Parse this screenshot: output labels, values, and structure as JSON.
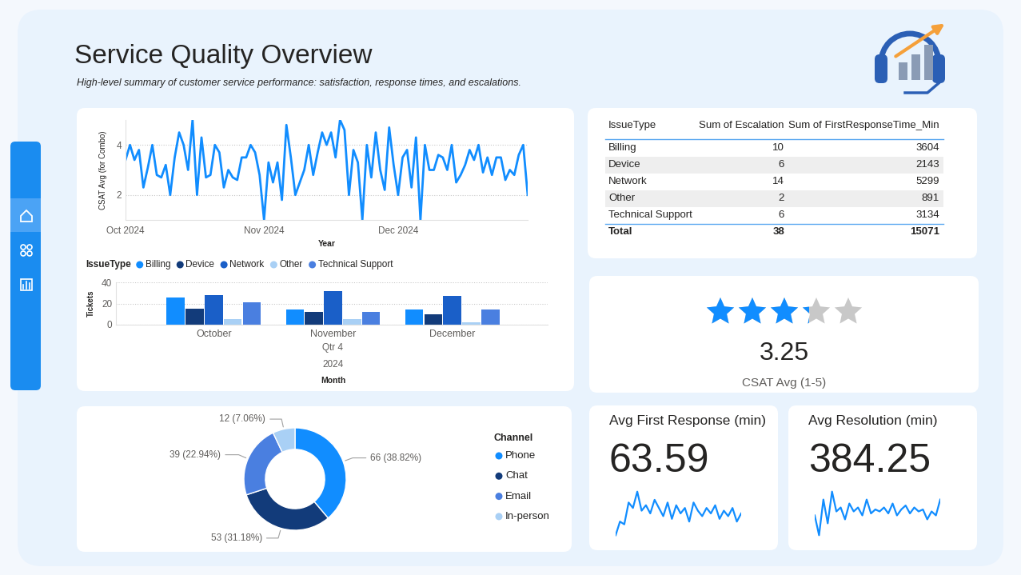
{
  "header": {
    "title": "Service Quality Overview",
    "subtitle": "High-level summary of customer service performance: satisfaction, response times, and escalations."
  },
  "chart_data": [
    {
      "type": "line",
      "x_label": "Year",
      "y_label": "CSAT Avg (for Combo)",
      "categories": [
        "Oct 2024",
        null,
        null,
        null,
        null,
        null,
        null,
        null,
        null,
        null,
        null,
        null,
        null,
        null,
        null,
        null,
        null,
        null,
        null,
        null,
        null,
        null,
        null,
        null,
        null,
        null,
        null,
        null,
        null,
        null,
        null,
        "Nov 2024",
        null,
        null,
        null,
        null,
        null,
        null,
        null,
        null,
        null,
        null,
        null,
        null,
        null,
        null,
        null,
        null,
        null,
        null,
        null,
        null,
        null,
        null,
        null,
        null,
        null,
        null,
        null,
        null,
        null,
        "Dec 2024",
        null,
        null,
        null,
        null,
        null,
        null,
        null,
        null,
        null,
        null,
        null,
        null,
        null,
        null,
        null,
        null,
        null,
        null,
        null,
        null,
        null,
        null,
        null,
        null,
        null,
        null,
        null,
        null,
        null
      ],
      "values": [
        3.4,
        4.0,
        3.4,
        3.8,
        2.3,
        3.1,
        4.0,
        2.8,
        2.7,
        3.2,
        2.0,
        3.5,
        4.5,
        4.0,
        3.0,
        5.0,
        2.0,
        4.3,
        2.7,
        2.8,
        4.0,
        3.7,
        2.3,
        3.0,
        2.7,
        2.6,
        3.5,
        3.5,
        4.0,
        3.7,
        2.8,
        1.0,
        3.3,
        2.5,
        3.3,
        1.8,
        4.8,
        3.5,
        2.0,
        2.5,
        3.0,
        4.0,
        2.8,
        3.7,
        4.5,
        4.0,
        4.5,
        3.5,
        5.0,
        4.6,
        2.0,
        3.8,
        3.3,
        1.0,
        4.0,
        2.7,
        4.5,
        3.0,
        2.2,
        4.7,
        3.2,
        2.0,
        3.5,
        3.8,
        2.3,
        4.3,
        1.0,
        4.0,
        3.0,
        3.0,
        3.6,
        3.5,
        3.0,
        4.0,
        2.5,
        2.8,
        3.2,
        3.8,
        3.4,
        4.0,
        2.9,
        3.5,
        2.8,
        3.5,
        3.5,
        2.6,
        3.0,
        2.8,
        3.6,
        4.0,
        2.0
      ],
      "color": "#118DFF",
      "ylim": [
        1,
        5
      ],
      "yticks": [
        2,
        4
      ],
      "grid": true
    },
    {
      "type": "bar",
      "x_label": "Month",
      "x_group_labels": [
        "Qtr 4",
        "2024"
      ],
      "y_label": "Tickets",
      "legend_title": "IssueType",
      "categories": [
        "October",
        "November",
        "December"
      ],
      "series": [
        {
          "name": "Billing",
          "color": "#118DFF",
          "values": [
            26,
            14,
            14
          ]
        },
        {
          "name": "Device",
          "color": "#123B7A",
          "values": [
            15,
            12,
            10
          ]
        },
        {
          "name": "Network",
          "color": "#1A5FC8",
          "values": [
            28,
            32,
            27
          ]
        },
        {
          "name": "Other",
          "color": "#A9D0F5",
          "values": [
            5,
            5,
            2
          ]
        },
        {
          "name": "Technical Support",
          "color": "#4A7FE0",
          "values": [
            21,
            12,
            14
          ]
        }
      ],
      "ylim": [
        0,
        40
      ],
      "yticks": [
        0,
        20,
        40
      ],
      "grid": true
    },
    {
      "type": "donut",
      "legend_title": "Channel",
      "categories": [
        "Phone",
        "Chat",
        "Email",
        "In-person"
      ],
      "values": [
        66,
        53,
        39,
        12
      ],
      "value_labels": [
        "66 (38.82%)",
        "53 (31.18%)",
        "39 (22.94%)",
        "12 (7.06%)"
      ],
      "colors": [
        "#118DFF",
        "#123B7A",
        "#4A7FE0",
        "#A9D0F5"
      ],
      "data_labels": true
    }
  ],
  "table": {
    "columns": [
      "IssueType",
      "Sum of Escalation",
      "Sum of FirstResponseTime_Min"
    ],
    "rows": [
      [
        "Billing",
        10,
        3604
      ],
      [
        "Device",
        6,
        2143
      ],
      [
        "Network",
        14,
        5299
      ],
      [
        "Other",
        2,
        891
      ],
      [
        "Technical Support",
        6,
        3134
      ]
    ],
    "total": [
      "Total",
      38,
      15071
    ]
  },
  "rating_card": {
    "value": 3.25,
    "max": 5,
    "label": "CSAT Avg (1-5)"
  },
  "kpi_cards": [
    {
      "title": "Avg First Response (min)",
      "value": 63.59,
      "trend": {
        "type": "line",
        "color": "#118DFF",
        "tick_labels": false,
        "values": [
          20,
          45,
          40,
          80,
          70,
          100,
          65,
          75,
          60,
          85,
          70,
          55,
          80,
          50,
          75,
          60,
          70,
          45,
          80,
          65,
          55,
          70,
          60,
          75,
          50,
          65,
          55,
          70,
          45,
          60
        ]
      }
    },
    {
      "title": "Avg Resolution (min)",
      "value": 384.25,
      "trend": {
        "type": "line",
        "color": "#118DFF",
        "tick_labels": false,
        "values": [
          380,
          330,
          420,
          360,
          440,
          390,
          400,
          370,
          410,
          390,
          400,
          380,
          420,
          385,
          395,
          390,
          400,
          385,
          410,
          380,
          395,
          405,
          385,
          400,
          390,
          395,
          370,
          390,
          380,
          420
        ]
      }
    }
  ]
}
